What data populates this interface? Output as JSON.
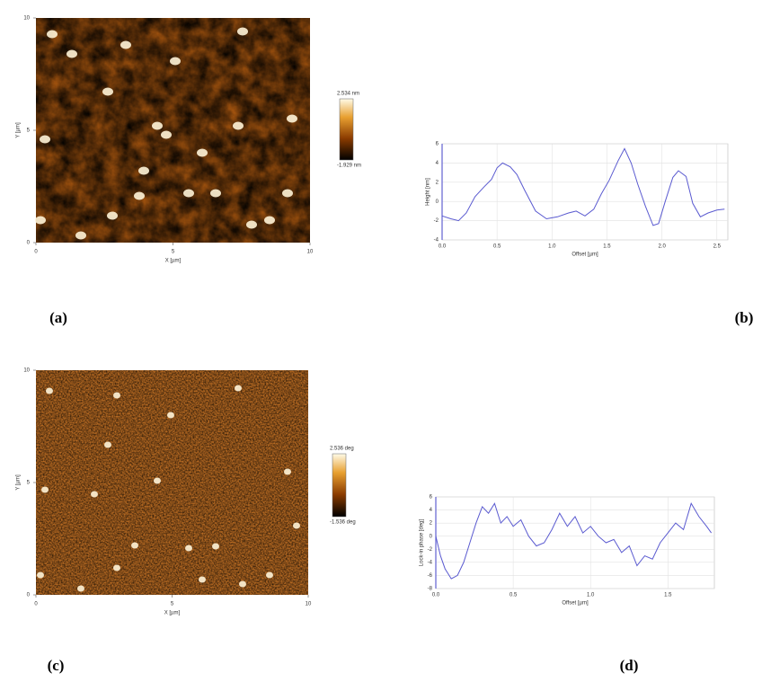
{
  "chart_data": [
    {
      "type": "image",
      "panel_label": "(a)",
      "xlabel": "X [µm]",
      "ylabel": "Y [µm]",
      "xlim": [
        0,
        10
      ],
      "ylim": [
        0,
        10
      ],
      "xticks": [
        0,
        5,
        10
      ],
      "yticks": [
        0,
        5,
        10
      ],
      "colorbar_labels": [
        "2.534 nm",
        "-1.929 nm"
      ]
    },
    {
      "type": "line",
      "panel_label": "(b)",
      "xlabel": "Offset [µm]",
      "ylabel": "Height [nm]",
      "color": "#5a5ad0",
      "xlim": [
        0,
        2.6
      ],
      "ylim": [
        -4,
        6
      ],
      "grid": true,
      "xticks": [
        {
          "value": 0,
          "label": "0.0"
        },
        0.5,
        {
          "value": 1,
          "label": "1.0"
        },
        1.5,
        {
          "value": 2,
          "label": "2.0"
        },
        2.5
      ],
      "yticks": [
        -4,
        -2,
        0,
        2,
        4,
        6
      ],
      "x": [
        0,
        0.08,
        0.15,
        0.22,
        0.3,
        0.38,
        0.45,
        0.5,
        0.55,
        0.62,
        0.68,
        0.75,
        0.85,
        0.95,
        1.05,
        1.15,
        1.22,
        1.3,
        1.38,
        1.45,
        1.52,
        1.6,
        1.66,
        1.72,
        1.78,
        1.85,
        1.92,
        1.97,
        2.03,
        2.1,
        2.15,
        2.22,
        2.28,
        2.35,
        2.42,
        2.5,
        2.57
      ],
      "values": [
        -1.5,
        -1.8,
        -2,
        -1.2,
        0.5,
        1.5,
        2.3,
        3.5,
        4,
        3.6,
        2.8,
        1.2,
        -1,
        -1.8,
        -1.6,
        -1.2,
        -1,
        -1.5,
        -0.8,
        0.8,
        2.2,
        4.2,
        5.5,
        4,
        1.8,
        -0.5,
        -2.5,
        -2.3,
        0,
        2.5,
        3.2,
        2.6,
        -0.2,
        -1.6,
        -1.2,
        -0.9,
        -0.8
      ]
    },
    {
      "type": "image",
      "panel_label": "(c)",
      "xlabel": "X [µm]",
      "ylabel": "Y [µm]",
      "xlim": [
        0,
        10
      ],
      "ylim": [
        0,
        10
      ],
      "xticks": [
        0,
        5,
        10
      ],
      "yticks": [
        0,
        5,
        10
      ],
      "colorbar_labels": [
        "2.536 deg",
        "-1.536 deg"
      ]
    },
    {
      "type": "line",
      "panel_label": "(d)",
      "xlabel": "Offset [µm]",
      "ylabel": "Lock-in phase [deg]",
      "color": "#5a5ad0",
      "xlim": [
        0,
        1.8
      ],
      "ylim": [
        -8,
        6
      ],
      "grid": true,
      "xticks": [
        {
          "value": 0,
          "label": "0.0"
        },
        0.5,
        {
          "value": 1,
          "label": "1.0"
        },
        1.5
      ],
      "yticks": [
        -8,
        -6,
        -4,
        -2,
        0,
        2,
        4,
        6
      ],
      "x": [
        0,
        0.03,
        0.06,
        0.1,
        0.14,
        0.18,
        0.22,
        0.26,
        0.3,
        0.34,
        0.38,
        0.42,
        0.46,
        0.5,
        0.55,
        0.6,
        0.65,
        0.7,
        0.75,
        0.8,
        0.85,
        0.9,
        0.95,
        1.0,
        1.05,
        1.1,
        1.15,
        1.2,
        1.25,
        1.3,
        1.35,
        1.4,
        1.45,
        1.5,
        1.55,
        1.6,
        1.65,
        1.7,
        1.75,
        1.78
      ],
      "values": [
        0,
        -3,
        -5,
        -6.5,
        -6,
        -4,
        -1,
        2,
        4.5,
        3.5,
        5,
        2,
        3,
        1.5,
        2.5,
        0,
        -1.5,
        -1,
        1,
        3.5,
        1.5,
        3,
        0.5,
        1.5,
        0,
        -1,
        -0.5,
        -2.5,
        -1.5,
        -4.5,
        -3,
        -3.5,
        -1,
        0.5,
        2,
        1,
        5,
        3,
        1.5,
        0.5
      ]
    }
  ]
}
